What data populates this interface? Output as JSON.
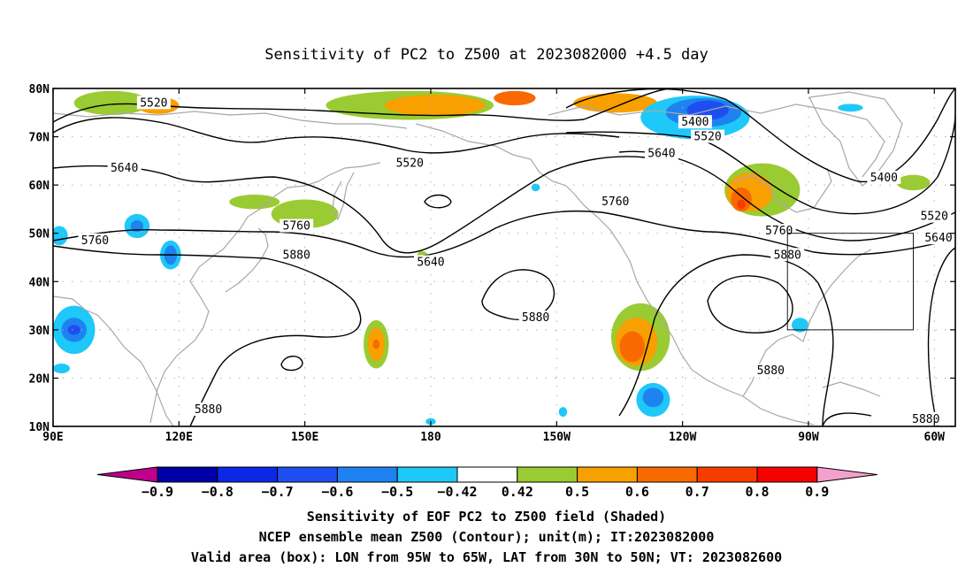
{
  "title": "Sensitivity of PC2 to Z500 at 2023082000 +4.5 day",
  "map": {
    "lon_range": [
      90,
      305
    ],
    "lat_range": [
      10,
      80
    ],
    "lat_ticks": [
      {
        "lat": 80,
        "label": "80N"
      },
      {
        "lat": 70,
        "label": "70N"
      },
      {
        "lat": 60,
        "label": "60N"
      },
      {
        "lat": 50,
        "label": "50N"
      },
      {
        "lat": 40,
        "label": "40N"
      },
      {
        "lat": 30,
        "label": "30N"
      },
      {
        "lat": 20,
        "label": "20N"
      },
      {
        "lat": 10,
        "label": "10N"
      }
    ],
    "lon_ticks": [
      {
        "lon": 90,
        "label": "90E"
      },
      {
        "lon": 120,
        "label": "120E"
      },
      {
        "lon": 150,
        "label": "150E"
      },
      {
        "lon": 180,
        "label": "180"
      },
      {
        "lon": 210,
        "label": "150W"
      },
      {
        "lon": 240,
        "label": "120W"
      },
      {
        "lon": 270,
        "label": "90W"
      },
      {
        "lon": 300,
        "label": "60W"
      }
    ],
    "grid": "dotted",
    "valid_box": {
      "lon": [
        265,
        295
      ],
      "lat": [
        30,
        50
      ]
    },
    "contour_labels": [
      {
        "text": "5520",
        "lon": 114,
        "lat": 77
      },
      {
        "text": "5640",
        "lon": 107,
        "lat": 63.5
      },
      {
        "text": "5760",
        "lon": 100,
        "lat": 48.5
      },
      {
        "text": "5520",
        "lon": 175,
        "lat": 64.5
      },
      {
        "text": "5760",
        "lon": 148,
        "lat": 51.5
      },
      {
        "text": "5880",
        "lon": 148,
        "lat": 45.5
      },
      {
        "text": "5640",
        "lon": 180,
        "lat": 44
      },
      {
        "text": "5880",
        "lon": 127,
        "lat": 13.5
      },
      {
        "text": "5880",
        "lon": 205,
        "lat": 32.5
      },
      {
        "text": "5760",
        "lon": 224,
        "lat": 56.5
      },
      {
        "text": "5640",
        "lon": 235,
        "lat": 66.5
      },
      {
        "text": "5400",
        "lon": 243,
        "lat": 73
      },
      {
        "text": "5520",
        "lon": 246,
        "lat": 70
      },
      {
        "text": "5760",
        "lon": 263,
        "lat": 50.5
      },
      {
        "text": "5880",
        "lon": 265,
        "lat": 45.5
      },
      {
        "text": "5880",
        "lon": 261,
        "lat": 21.5
      },
      {
        "text": "5400",
        "lon": 288,
        "lat": 61.5
      },
      {
        "text": "5520",
        "lon": 300,
        "lat": 53.5
      },
      {
        "text": "5640",
        "lon": 301,
        "lat": 49
      },
      {
        "text": "5880",
        "lon": 298,
        "lat": 11.5
      }
    ],
    "shading": [
      {
        "level": 0.5,
        "lon": 104,
        "lat": 77,
        "rx": 9,
        "ry": 2.5
      },
      {
        "level": 0.6,
        "lon": 115,
        "lat": 76.5,
        "rx": 5,
        "ry": 1.8
      },
      {
        "level": 0.5,
        "lon": 175,
        "lat": 76.5,
        "rx": 20,
        "ry": 3
      },
      {
        "level": 0.6,
        "lon": 181,
        "lat": 76.5,
        "rx": 12,
        "ry": 2.2
      },
      {
        "level": 0.6,
        "lon": 224,
        "lat": 77,
        "rx": 10,
        "ry": 2
      },
      {
        "level": 0.7,
        "lon": 200,
        "lat": 78,
        "rx": 5,
        "ry": 1.5
      },
      {
        "level": 0.5,
        "lon": 150,
        "lat": 54,
        "rx": 8,
        "ry": 3
      },
      {
        "level": 0.5,
        "lon": 138,
        "lat": 56.5,
        "rx": 6,
        "ry": 1.5
      },
      {
        "level": 0.5,
        "lon": 178,
        "lat": 45.5,
        "rx": 1.2,
        "ry": 0.8
      },
      {
        "level": 0.5,
        "lon": 167,
        "lat": 27,
        "rx": 3,
        "ry": 5
      },
      {
        "level": 0.6,
        "lon": 167,
        "lat": 27,
        "rx": 2,
        "ry": 3.5
      },
      {
        "level": 0.7,
        "lon": 167,
        "lat": 27,
        "rx": 0.8,
        "ry": 1
      },
      {
        "level": 0.5,
        "lon": 230,
        "lat": 28.5,
        "rx": 7,
        "ry": 7
      },
      {
        "level": 0.6,
        "lon": 229,
        "lat": 27.5,
        "rx": 5,
        "ry": 5
      },
      {
        "level": 0.7,
        "lon": 228,
        "lat": 26.5,
        "rx": 3,
        "ry": 3.2
      },
      {
        "level": 0.5,
        "lon": 259,
        "lat": 59,
        "rx": 9,
        "ry": 5.5
      },
      {
        "level": 0.6,
        "lon": 256,
        "lat": 58.5,
        "rx": 5.5,
        "ry": 4
      },
      {
        "level": 0.7,
        "lon": 254,
        "lat": 57,
        "rx": 2.5,
        "ry": 2.5
      },
      {
        "level": 0.8,
        "lon": 254,
        "lat": 56,
        "rx": 1,
        "ry": 1
      },
      {
        "level": 0.5,
        "lon": 295,
        "lat": 60.5,
        "rx": 4,
        "ry": 1.6
      },
      {
        "level": -0.5,
        "lon": 243,
        "lat": 74,
        "rx": 13,
        "ry": 4.5
      },
      {
        "level": -0.6,
        "lon": 245,
        "lat": 75,
        "rx": 9,
        "ry": 3
      },
      {
        "level": -0.7,
        "lon": 246,
        "lat": 75.5,
        "rx": 5,
        "ry": 2
      },
      {
        "level": -0.5,
        "lon": 280,
        "lat": 76,
        "rx": 3,
        "ry": 0.8
      },
      {
        "level": -0.5,
        "lon": 110,
        "lat": 51.5,
        "rx": 3,
        "ry": 2.5
      },
      {
        "level": -0.6,
        "lon": 110,
        "lat": 51.5,
        "rx": 1.5,
        "ry": 1.2
      },
      {
        "level": -0.5,
        "lon": 118,
        "lat": 45.5,
        "rx": 2.5,
        "ry": 3
      },
      {
        "level": -0.6,
        "lon": 118,
        "lat": 45.5,
        "rx": 1.5,
        "ry": 2
      },
      {
        "level": -0.5,
        "lon": 91.5,
        "lat": 49.5,
        "rx": 2,
        "ry": 2
      },
      {
        "level": -0.5,
        "lon": 95,
        "lat": 30,
        "rx": 5,
        "ry": 5
      },
      {
        "level": -0.6,
        "lon": 95,
        "lat": 30,
        "rx": 3,
        "ry": 2.5
      },
      {
        "level": -0.7,
        "lon": 95,
        "lat": 30,
        "rx": 1.5,
        "ry": 1
      },
      {
        "level": -0.5,
        "lon": 92,
        "lat": 22,
        "rx": 2,
        "ry": 1
      },
      {
        "level": -0.5,
        "lon": 205,
        "lat": 59.5,
        "rx": 1,
        "ry": 0.8
      },
      {
        "level": -0.5,
        "lon": 233,
        "lat": 15.5,
        "rx": 4,
        "ry": 3.5
      },
      {
        "level": -0.6,
        "lon": 233,
        "lat": 16,
        "rx": 2.5,
        "ry": 2
      },
      {
        "level": -0.5,
        "lon": 211.5,
        "lat": 13,
        "rx": 1,
        "ry": 1
      },
      {
        "level": -0.5,
        "lon": 268,
        "lat": 31,
        "rx": 2,
        "ry": 1.5
      },
      {
        "level": -0.5,
        "lon": 180,
        "lat": 11,
        "rx": 1.2,
        "ry": 0.7
      }
    ]
  },
  "colorbar": {
    "labels": [
      "−0.9",
      "−0.8",
      "−0.7",
      "−0.6",
      "−0.5",
      "−0.42",
      "0.42",
      "0.5",
      "0.6",
      "0.7",
      "0.8",
      "0.9"
    ],
    "colors": [
      "#c0008a",
      "#0000a8",
      "#0a28e6",
      "#1e4ef2",
      "#1e82f0",
      "#1ec8f8",
      "#ffffff",
      "#9acb33",
      "#f8a000",
      "#f86a00",
      "#f83c00",
      "#f80000",
      "#f4a0cc"
    ],
    "level_colors": {
      "-0.9": "#0000a8",
      "-0.8": "#0a28e6",
      "-0.7": "#1e4ef2",
      "-0.6": "#1e82f0",
      "-0.5": "#1ec8f8",
      "0.5": "#9acb33",
      "0.6": "#f8a000",
      "0.7": "#f86a00",
      "0.8": "#f83c00",
      "0.9": "#f80000"
    }
  },
  "caption": {
    "line1": "Sensitivity of EOF PC2 to Z500 field (Shaded)",
    "line2": "NCEP ensemble mean Z500 (Contour); unit(m); IT:2023082000",
    "line3": "Valid area (box): LON from 95W to 65W, LAT from 30N to 50N; VT: 2023082600"
  }
}
